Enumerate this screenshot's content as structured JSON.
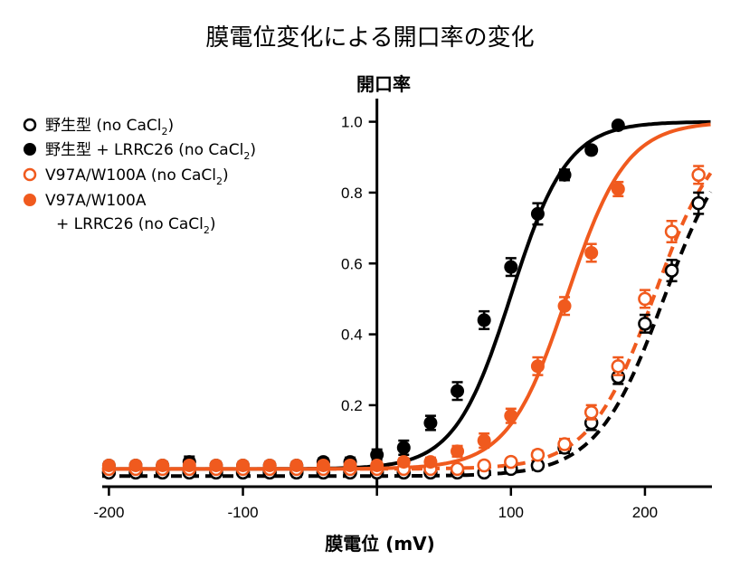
{
  "chart_data": {
    "type": "scatter",
    "title": "膜電位変化による開口率の変化",
    "xlabel": "膜電位 (mV)",
    "ylabel": "開口率",
    "xlim": [
      -205,
      250
    ],
    "ylim": [
      -0.03,
      1.05
    ],
    "xticks": [
      -200,
      -100,
      0,
      100,
      200
    ],
    "xtick_labels": [
      "-200",
      "-100",
      "",
      "100",
      "200"
    ],
    "yticks": [
      0.2,
      0.4,
      0.6,
      0.8,
      1.0
    ],
    "ytick_labels": [
      "0.2",
      "0.4",
      "0.6",
      "0.8",
      "1.0"
    ],
    "legend_position": "top-left",
    "colors": {
      "black": "#000000",
      "orange": "#f05a1e"
    },
    "series": [
      {
        "legend_main": "野生型 (no CaCl",
        "legend_sub": "2",
        "legend_tail": ")",
        "legend_line2": "",
        "color": "#000000",
        "marker": "open",
        "line": "dashed",
        "fit": {
          "v_half": 214,
          "slope": 25,
          "baseline": 0.0
        },
        "x": [
          -200,
          -180,
          -160,
          -140,
          -120,
          -100,
          -80,
          -60,
          -40,
          -20,
          0,
          20,
          40,
          60,
          80,
          100,
          120,
          140,
          160,
          180,
          200,
          220,
          240
        ],
        "y": [
          0.01,
          0.01,
          0.01,
          0.01,
          0.01,
          0.01,
          0.01,
          0.01,
          0.01,
          0.01,
          0.01,
          0.01,
          0.01,
          0.01,
          0.01,
          0.02,
          0.03,
          0.08,
          0.15,
          0.28,
          0.43,
          0.58,
          0.77
        ],
        "err": [
          0.008,
          0.008,
          0.008,
          0.008,
          0.008,
          0.008,
          0.008,
          0.008,
          0.008,
          0.008,
          0.008,
          0.008,
          0.008,
          0.008,
          0.008,
          0.01,
          0.01,
          0.015,
          0.02,
          0.02,
          0.025,
          0.03,
          0.03
        ]
      },
      {
        "legend_main": "野生型 + LRRC26 (no CaCl",
        "legend_sub": "2",
        "legend_tail": ")",
        "legend_line2": "",
        "color": "#000000",
        "marker": "filled",
        "line": "solid",
        "fit": {
          "v_half": 100,
          "slope": 21,
          "baseline": 0.02
        },
        "x": [
          -200,
          -180,
          -160,
          -140,
          -120,
          -100,
          -80,
          -60,
          -40,
          -20,
          0,
          20,
          40,
          60,
          80,
          100,
          120,
          140,
          160,
          180
        ],
        "y": [
          0.03,
          0.03,
          0.03,
          0.04,
          0.03,
          0.03,
          0.03,
          0.03,
          0.04,
          0.04,
          0.06,
          0.08,
          0.15,
          0.24,
          0.44,
          0.59,
          0.74,
          0.85,
          0.92,
          0.99
        ],
        "err": [
          0.01,
          0.01,
          0.01,
          0.015,
          0.01,
          0.01,
          0.01,
          0.01,
          0.01,
          0.012,
          0.015,
          0.02,
          0.02,
          0.025,
          0.025,
          0.025,
          0.03,
          0.015,
          0.01,
          0.005
        ]
      },
      {
        "legend_main": "V97A/W100A (no CaCl",
        "legend_sub": "2",
        "legend_tail": ")",
        "legend_line2": "",
        "color": "#f05a1e",
        "marker": "open",
        "line": "dashed",
        "fit": {
          "v_half": 207,
          "slope": 24,
          "baseline": 0.02
        },
        "x": [
          -200,
          -180,
          -160,
          -140,
          -120,
          -100,
          -80,
          -60,
          -40,
          -20,
          0,
          20,
          40,
          60,
          80,
          100,
          120,
          140,
          160,
          180,
          200,
          220,
          240
        ],
        "y": [
          0.02,
          0.02,
          0.02,
          0.02,
          0.02,
          0.02,
          0.02,
          0.02,
          0.02,
          0.02,
          0.02,
          0.02,
          0.02,
          0.02,
          0.03,
          0.04,
          0.06,
          0.09,
          0.18,
          0.31,
          0.5,
          0.69,
          0.85
        ],
        "err": [
          0.008,
          0.008,
          0.008,
          0.008,
          0.008,
          0.008,
          0.008,
          0.008,
          0.008,
          0.008,
          0.008,
          0.008,
          0.008,
          0.008,
          0.01,
          0.01,
          0.012,
          0.015,
          0.02,
          0.025,
          0.025,
          0.03,
          0.025
        ]
      },
      {
        "legend_main": "V97A/W100A",
        "legend_sub": "2",
        "legend_tail": ")",
        "legend_line2": "+ LRRC26 (no CaCl",
        "color": "#f05a1e",
        "marker": "filled",
        "line": "solid",
        "fit": {
          "v_half": 142,
          "slope": 22,
          "baseline": 0.02
        },
        "x": [
          -200,
          -180,
          -160,
          -140,
          -120,
          -100,
          -80,
          -60,
          -40,
          -20,
          0,
          20,
          40,
          60,
          80,
          100,
          120,
          140,
          160,
          180
        ],
        "y": [
          0.03,
          0.03,
          0.03,
          0.03,
          0.03,
          0.03,
          0.03,
          0.03,
          0.03,
          0.03,
          0.03,
          0.04,
          0.04,
          0.07,
          0.1,
          0.17,
          0.31,
          0.48,
          0.63,
          0.81
        ],
        "err": [
          0.01,
          0.01,
          0.01,
          0.01,
          0.01,
          0.01,
          0.01,
          0.01,
          0.01,
          0.01,
          0.01,
          0.01,
          0.012,
          0.015,
          0.02,
          0.02,
          0.025,
          0.025,
          0.025,
          0.02
        ]
      }
    ]
  }
}
